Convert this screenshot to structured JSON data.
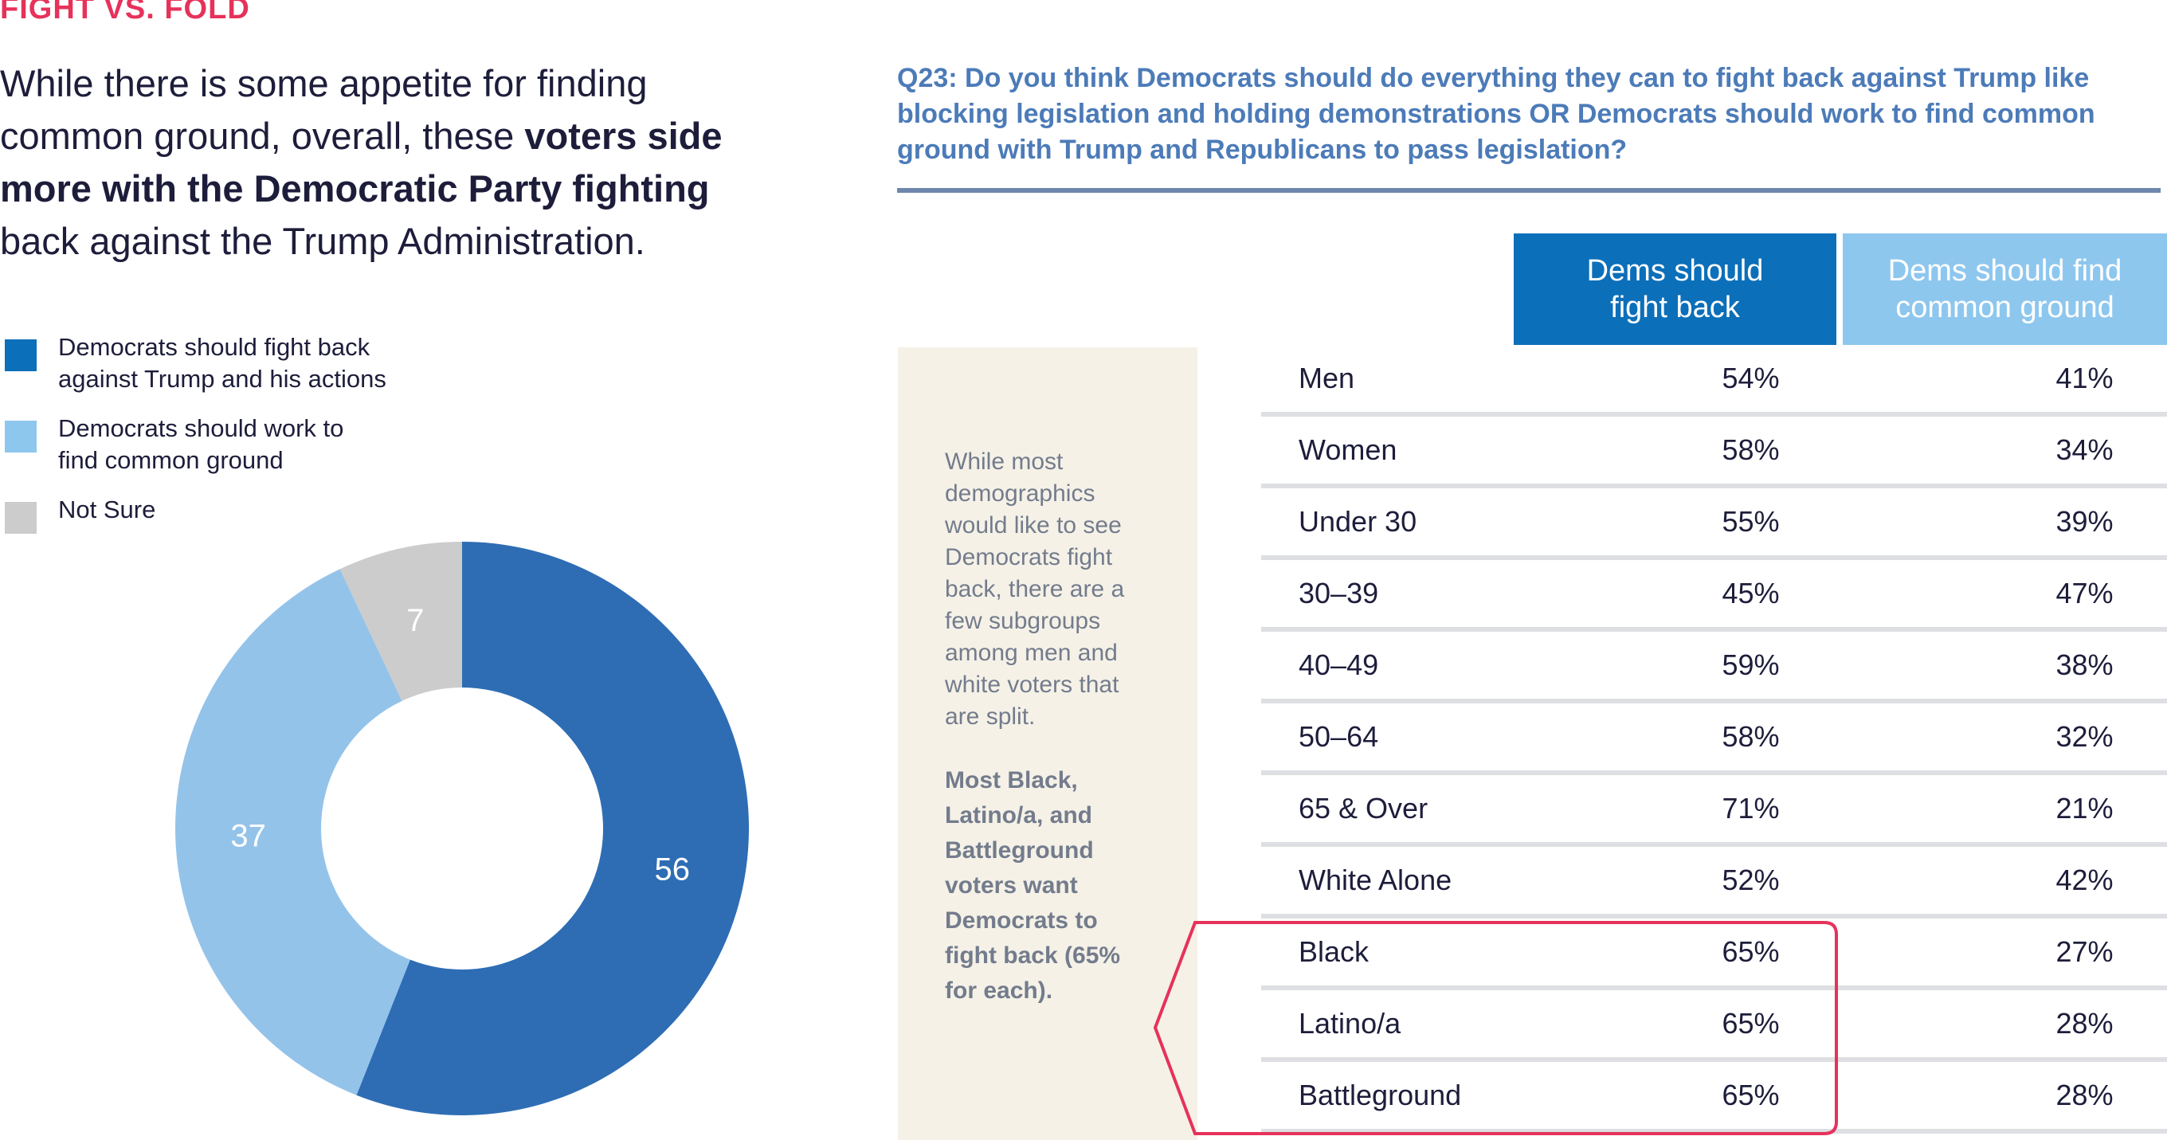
{
  "section_tag": "FIGHT VS. FOLD",
  "headline": {
    "lead": "While there is some appetite for finding common ground, overall, these ",
    "bold": "voters side more with the Democratic Party fighting",
    "tail": " back against the Trump Administration."
  },
  "legend": [
    {
      "label": "Democrats should fight back\nagainst Trump and his actions",
      "color": "#0c6fb9"
    },
    {
      "label": "Democrats should work to\nfind common ground",
      "color": "#8ec7ee"
    },
    {
      "label": "Not Sure",
      "color": "#cccccc"
    }
  ],
  "chart_data": [
    {
      "type": "pie",
      "variant": "donut",
      "categories": [
        "Democrats should fight back against Trump and his actions",
        "Democrats should work to find common ground",
        "Not Sure"
      ],
      "values": [
        56,
        37,
        7
      ],
      "labels": [
        "56",
        "37",
        "7"
      ],
      "colors": [
        "#2e6db4",
        "#94c3ea",
        "#cccccc"
      ]
    },
    {
      "type": "table",
      "title": "Q23: Do you think Democrats should do everything they can to fight back against Trump like blocking legislation and holding demonstrations OR Democrats should work to find common ground with Trump and Republicans to pass legislation?",
      "columns": [
        "Dems should\nfight back",
        "Dems should find\ncommon ground"
      ],
      "rows": [
        {
          "label": "Men",
          "fight": "54%",
          "common": "41%"
        },
        {
          "label": "Women",
          "fight": "58%",
          "common": "34%"
        },
        {
          "label": "Under 30",
          "fight": "55%",
          "common": "39%"
        },
        {
          "label": "30–39",
          "fight": "45%",
          "common": "47%"
        },
        {
          "label": "40–49",
          "fight": "59%",
          "common": "38%"
        },
        {
          "label": "50–64",
          "fight": "58%",
          "common": "32%"
        },
        {
          "label": "65 & Over",
          "fight": "71%",
          "common": "21%"
        },
        {
          "label": "White Alone",
          "fight": "52%",
          "common": "42%"
        },
        {
          "label": "Black",
          "fight": "65%",
          "common": "27%"
        },
        {
          "label": "Latino/a",
          "fight": "65%",
          "common": "28%"
        },
        {
          "label": "Battleground",
          "fight": "65%",
          "common": "28%"
        }
      ],
      "highlighted_rows": [
        "Black",
        "Latino/a",
        "Battleground"
      ],
      "highlight_color": "#e6325a"
    }
  ],
  "sidebar": {
    "text": "While most\ndemographics\nwould like to see\nDemocrats fight\nback, there are a\nfew subgroups\namong men and\nwhite voters that\nare split.",
    "bold_text": "Most Black,\nLatino/a, and\nBattleground\nvoters want\nDemocrats to\nfight back (65%\nfor each)."
  }
}
